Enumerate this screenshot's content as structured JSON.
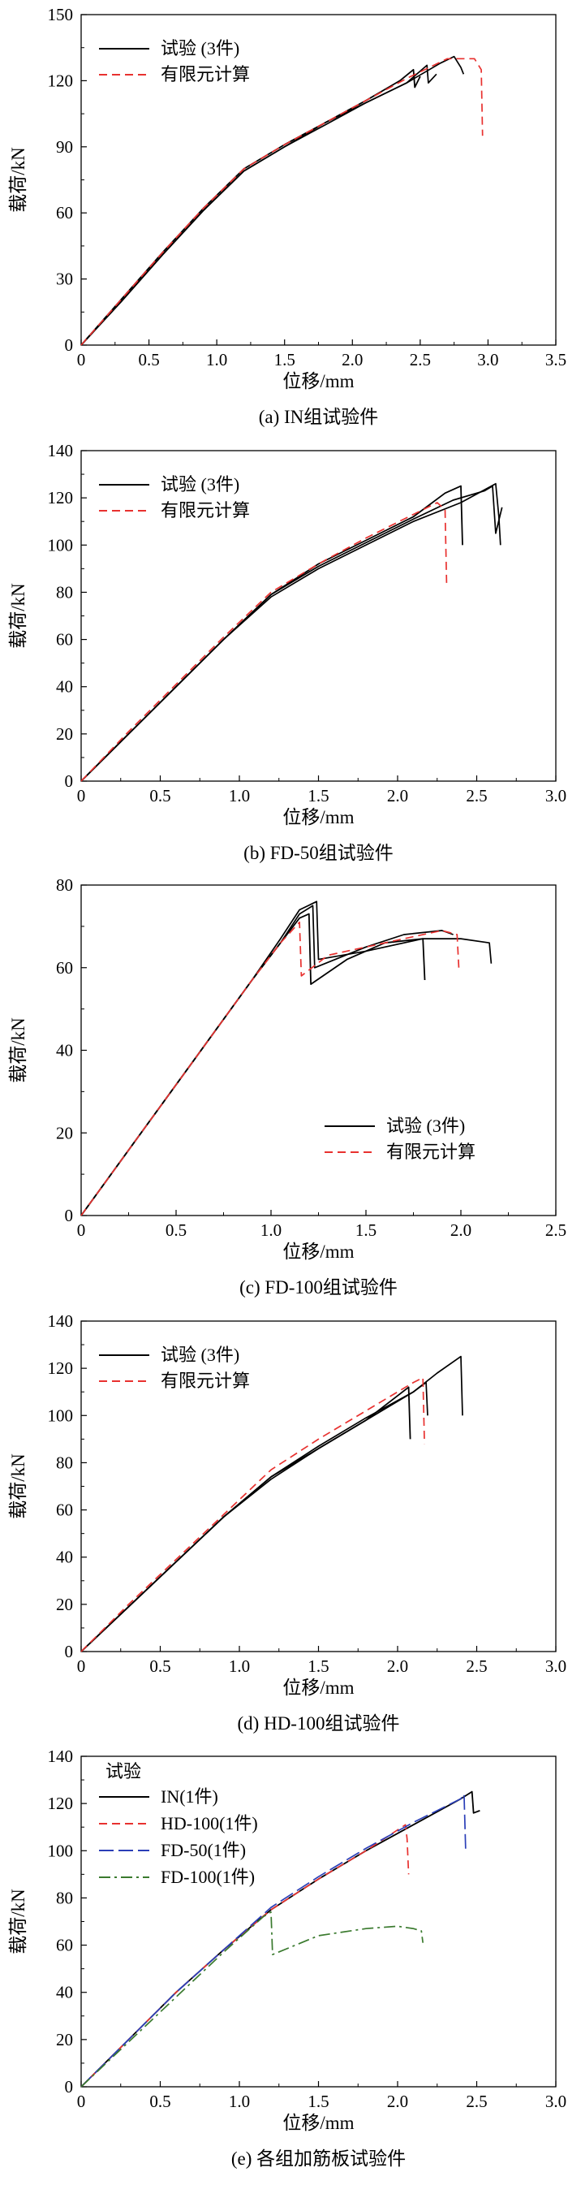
{
  "chart_data": [
    {
      "type": "line",
      "caption": "(a) IN组试验件",
      "xlabel": "位移/mm",
      "ylabel": "载荷/kN",
      "xlim": [
        0,
        3.5
      ],
      "ylim": [
        0,
        150
      ],
      "xticks": [
        "0",
        "0.5",
        "1.0",
        "1.5",
        "2.0",
        "2.5",
        "3.0",
        "3.5"
      ],
      "yticks": [
        "0",
        "30",
        "60",
        "90",
        "120",
        "150"
      ],
      "legend_position": "top-left",
      "legend_title": "",
      "series": [
        {
          "name": "试验 (3件)",
          "color": "#000000",
          "dash": "solid",
          "in_legend": true,
          "x": [
            0,
            0.3,
            0.6,
            0.9,
            1.2,
            1.5,
            1.8,
            2.1,
            2.35,
            2.45,
            2.46,
            2.5
          ],
          "y": [
            0,
            21,
            42,
            62,
            80,
            91,
            101,
            111,
            120,
            125,
            117,
            122
          ]
        },
        {
          "name": "试验 (3件)",
          "color": "#000000",
          "dash": "solid",
          "in_legend": false,
          "x": [
            0,
            0.3,
            0.6,
            0.9,
            1.2,
            1.5,
            1.8,
            2.1,
            2.4,
            2.55,
            2.56,
            2.62
          ],
          "y": [
            0,
            20,
            41,
            61,
            79,
            90,
            100,
            110,
            119,
            127,
            119,
            123
          ]
        },
        {
          "name": "试验 (3件)",
          "color": "#000000",
          "dash": "solid",
          "in_legend": false,
          "x": [
            0,
            0.3,
            0.6,
            0.9,
            1.2,
            1.5,
            1.8,
            2.1,
            2.4,
            2.65,
            2.75,
            2.8,
            2.82
          ],
          "y": [
            0,
            20,
            41,
            61,
            79,
            90,
            101,
            110,
            119,
            128,
            131,
            126,
            123
          ]
        },
        {
          "name": "有限元计算",
          "color": "#e8312f",
          "dash": "dash",
          "in_legend": true,
          "x": [
            0,
            0.3,
            0.6,
            0.9,
            1.2,
            1.5,
            1.8,
            2.1,
            2.4,
            2.7,
            2.9,
            2.95,
            2.96
          ],
          "y": [
            0,
            21,
            42,
            62,
            80,
            91,
            101,
            111,
            121,
            130,
            130,
            125,
            95
          ]
        }
      ]
    },
    {
      "type": "line",
      "caption": "(b) FD-50组试验件",
      "xlabel": "位移/mm",
      "ylabel": "载荷/kN",
      "xlim": [
        0,
        3.0
      ],
      "ylim": [
        0,
        140
      ],
      "xticks": [
        "0",
        "0.5",
        "1.0",
        "1.5",
        "2.0",
        "2.5",
        "3.0"
      ],
      "yticks": [
        "0",
        "20",
        "40",
        "60",
        "80",
        "100",
        "120",
        "140"
      ],
      "legend_position": "top-left",
      "legend_title": "",
      "series": [
        {
          "name": "试验 (3件)",
          "color": "#000000",
          "dash": "solid",
          "in_legend": true,
          "x": [
            0,
            0.3,
            0.6,
            0.9,
            1.2,
            1.5,
            1.8,
            2.1,
            2.3,
            2.4,
            2.41
          ],
          "y": [
            0,
            20,
            40,
            60,
            79,
            92,
            102,
            112,
            122,
            125,
            100
          ]
        },
        {
          "name": "试验 (3件)",
          "color": "#000000",
          "dash": "solid",
          "in_legend": false,
          "x": [
            0,
            0.3,
            0.6,
            0.9,
            1.2,
            1.5,
            1.8,
            2.1,
            2.35,
            2.55,
            2.6,
            2.62,
            2.66
          ],
          "y": [
            0,
            20,
            40,
            60,
            79,
            91,
            101,
            111,
            119,
            123,
            125,
            105,
            116
          ]
        },
        {
          "name": "试验 (3件)",
          "color": "#000000",
          "dash": "solid",
          "in_legend": false,
          "x": [
            0,
            0.3,
            0.6,
            0.9,
            1.2,
            1.5,
            1.8,
            2.1,
            2.4,
            2.62,
            2.64,
            2.65
          ],
          "y": [
            0,
            20,
            40,
            60,
            78,
            90,
            100,
            110,
            118,
            126,
            112,
            100
          ]
        },
        {
          "name": "有限元计算",
          "color": "#e8312f",
          "dash": "dash",
          "in_legend": true,
          "x": [
            0,
            0.3,
            0.6,
            0.9,
            1.2,
            1.5,
            1.8,
            2.1,
            2.25,
            2.3,
            2.31
          ],
          "y": [
            0,
            21,
            41,
            61,
            80,
            92,
            103,
            113,
            118,
            115,
            82
          ]
        }
      ]
    },
    {
      "type": "line",
      "caption": "(c) FD-100组试验件",
      "xlabel": "位移/mm",
      "ylabel": "载荷/kN",
      "xlim": [
        0,
        2.5
      ],
      "ylim": [
        0,
        80
      ],
      "xticks": [
        "0",
        "0.5",
        "1.0",
        "1.5",
        "2.0",
        "2.5"
      ],
      "yticks": [
        "0",
        "20",
        "40",
        "60",
        "80"
      ],
      "legend_position": "bottom-right",
      "legend_title": "",
      "series": [
        {
          "name": "试验 (3件)",
          "color": "#000000",
          "dash": "solid",
          "in_legend": true,
          "x": [
            0,
            0.3,
            0.6,
            0.9,
            1.05,
            1.15,
            1.2,
            1.21,
            1.4,
            1.6,
            1.8,
            1.81
          ],
          "y": [
            0,
            19,
            38,
            57,
            66,
            72,
            73,
            56,
            62,
            66,
            67,
            57
          ]
        },
        {
          "name": "试验 (3件)",
          "color": "#000000",
          "dash": "solid",
          "in_legend": false,
          "x": [
            0,
            0.3,
            0.6,
            0.9,
            1.05,
            1.15,
            1.22,
            1.23,
            1.5,
            1.7,
            1.9,
            1.96
          ],
          "y": [
            0,
            19,
            38,
            57,
            66,
            73,
            75,
            60,
            65,
            68,
            69,
            68
          ]
        },
        {
          "name": "试验 (3件)",
          "color": "#000000",
          "dash": "solid",
          "in_legend": false,
          "x": [
            0,
            0.3,
            0.6,
            0.9,
            1.05,
            1.15,
            1.24,
            1.25,
            1.5,
            1.8,
            2.0,
            2.15,
            2.16
          ],
          "y": [
            0,
            19,
            38,
            57,
            67,
            74,
            76,
            62,
            64,
            67,
            67,
            66,
            61
          ]
        },
        {
          "name": "有限元计算",
          "color": "#e8312f",
          "dash": "dash",
          "in_legend": true,
          "x": [
            0,
            0.3,
            0.6,
            0.9,
            1.05,
            1.15,
            1.16,
            1.3,
            1.5,
            1.7,
            1.9,
            1.98,
            1.99
          ],
          "y": [
            0,
            19,
            38,
            57,
            66,
            71,
            58,
            63,
            65,
            67,
            69,
            68,
            59
          ]
        }
      ]
    },
    {
      "type": "line",
      "caption": "(d) HD-100组试验件",
      "xlabel": "位移/mm",
      "ylabel": "载荷/kN",
      "xlim": [
        0,
        3.0
      ],
      "ylim": [
        0,
        140
      ],
      "xticks": [
        "0",
        "0.5",
        "1.0",
        "1.5",
        "2.0",
        "2.5",
        "3.0"
      ],
      "yticks": [
        "0",
        "20",
        "40",
        "60",
        "80",
        "100",
        "120",
        "140"
      ],
      "legend_position": "top-left",
      "legend_title": "",
      "series": [
        {
          "name": "试验 (3件)",
          "color": "#000000",
          "dash": "solid",
          "in_legend": true,
          "x": [
            0,
            0.3,
            0.6,
            0.9,
            1.2,
            1.5,
            1.8,
            2.07,
            2.08
          ],
          "y": [
            0,
            19,
            38,
            57,
            74,
            86,
            98,
            112,
            90
          ]
        },
        {
          "name": "试验 (3件)",
          "color": "#000000",
          "dash": "solid",
          "in_legend": false,
          "x": [
            0,
            0.3,
            0.6,
            0.9,
            1.2,
            1.5,
            1.8,
            2.1,
            2.18,
            2.19
          ],
          "y": [
            0,
            19,
            38,
            57,
            74,
            87,
            99,
            110,
            114,
            100
          ]
        },
        {
          "name": "试验 (3件)",
          "color": "#000000",
          "dash": "solid",
          "in_legend": false,
          "x": [
            0,
            0.3,
            0.6,
            0.9,
            1.2,
            1.5,
            1.8,
            2.1,
            2.25,
            2.4,
            2.41
          ],
          "y": [
            0,
            19,
            38,
            57,
            73,
            86,
            98,
            110,
            118,
            125,
            100
          ]
        },
        {
          "name": "有限元计算",
          "color": "#e8312f",
          "dash": "dash",
          "in_legend": true,
          "x": [
            0,
            0.3,
            0.6,
            0.9,
            1.2,
            1.5,
            1.8,
            2.1,
            2.16,
            2.17
          ],
          "y": [
            0,
            20,
            39,
            58,
            77,
            90,
            102,
            114,
            116,
            88
          ]
        }
      ]
    },
    {
      "type": "line",
      "caption": "(e) 各组加筋板试验件",
      "xlabel": "位移/mm",
      "ylabel": "载荷/kN",
      "xlim": [
        0,
        3.0
      ],
      "ylim": [
        0,
        140
      ],
      "xticks": [
        "0",
        "0.5",
        "1.0",
        "1.5",
        "2.0",
        "2.5",
        "3.0"
      ],
      "yticks": [
        "0",
        "20",
        "40",
        "60",
        "80",
        "100",
        "120",
        "140"
      ],
      "legend_position": "top-left",
      "legend_title": "试验",
      "series": [
        {
          "name": "IN(1件)",
          "color": "#000000",
          "dash": "solid",
          "in_legend": true,
          "x": [
            0,
            0.3,
            0.6,
            0.9,
            1.2,
            1.5,
            1.8,
            2.1,
            2.4,
            2.47,
            2.48,
            2.52
          ],
          "y": [
            0,
            20,
            40,
            58,
            75,
            88,
            100,
            111,
            122,
            125,
            116,
            117
          ]
        },
        {
          "name": "HD-100(1件)",
          "color": "#e8312f",
          "dash": "dash",
          "in_legend": true,
          "x": [
            0,
            0.3,
            0.6,
            0.9,
            1.2,
            1.5,
            1.8,
            2.05,
            2.06,
            2.07
          ],
          "y": [
            0,
            20,
            40,
            58,
            75,
            88,
            100,
            111,
            105,
            90
          ]
        },
        {
          "name": "FD-50(1件)",
          "color": "#2b3fb8",
          "dash": "longdash",
          "in_legend": true,
          "x": [
            0,
            0.3,
            0.6,
            0.9,
            1.2,
            1.5,
            1.8,
            2.1,
            2.4,
            2.42,
            2.43
          ],
          "y": [
            0,
            20,
            40,
            58,
            76,
            89,
            101,
            112,
            122,
            124,
            100
          ]
        },
        {
          "name": "FD-100(1件)",
          "color": "#3a7a2e",
          "dash": "dashdot",
          "in_legend": true,
          "x": [
            0,
            0.3,
            0.6,
            0.9,
            1.15,
            1.2,
            1.21,
            1.5,
            1.8,
            2.0,
            2.1,
            2.15,
            2.16
          ],
          "y": [
            0,
            19,
            38,
            57,
            72,
            74,
            56,
            64,
            67,
            68,
            67,
            66,
            61
          ]
        }
      ]
    }
  ]
}
